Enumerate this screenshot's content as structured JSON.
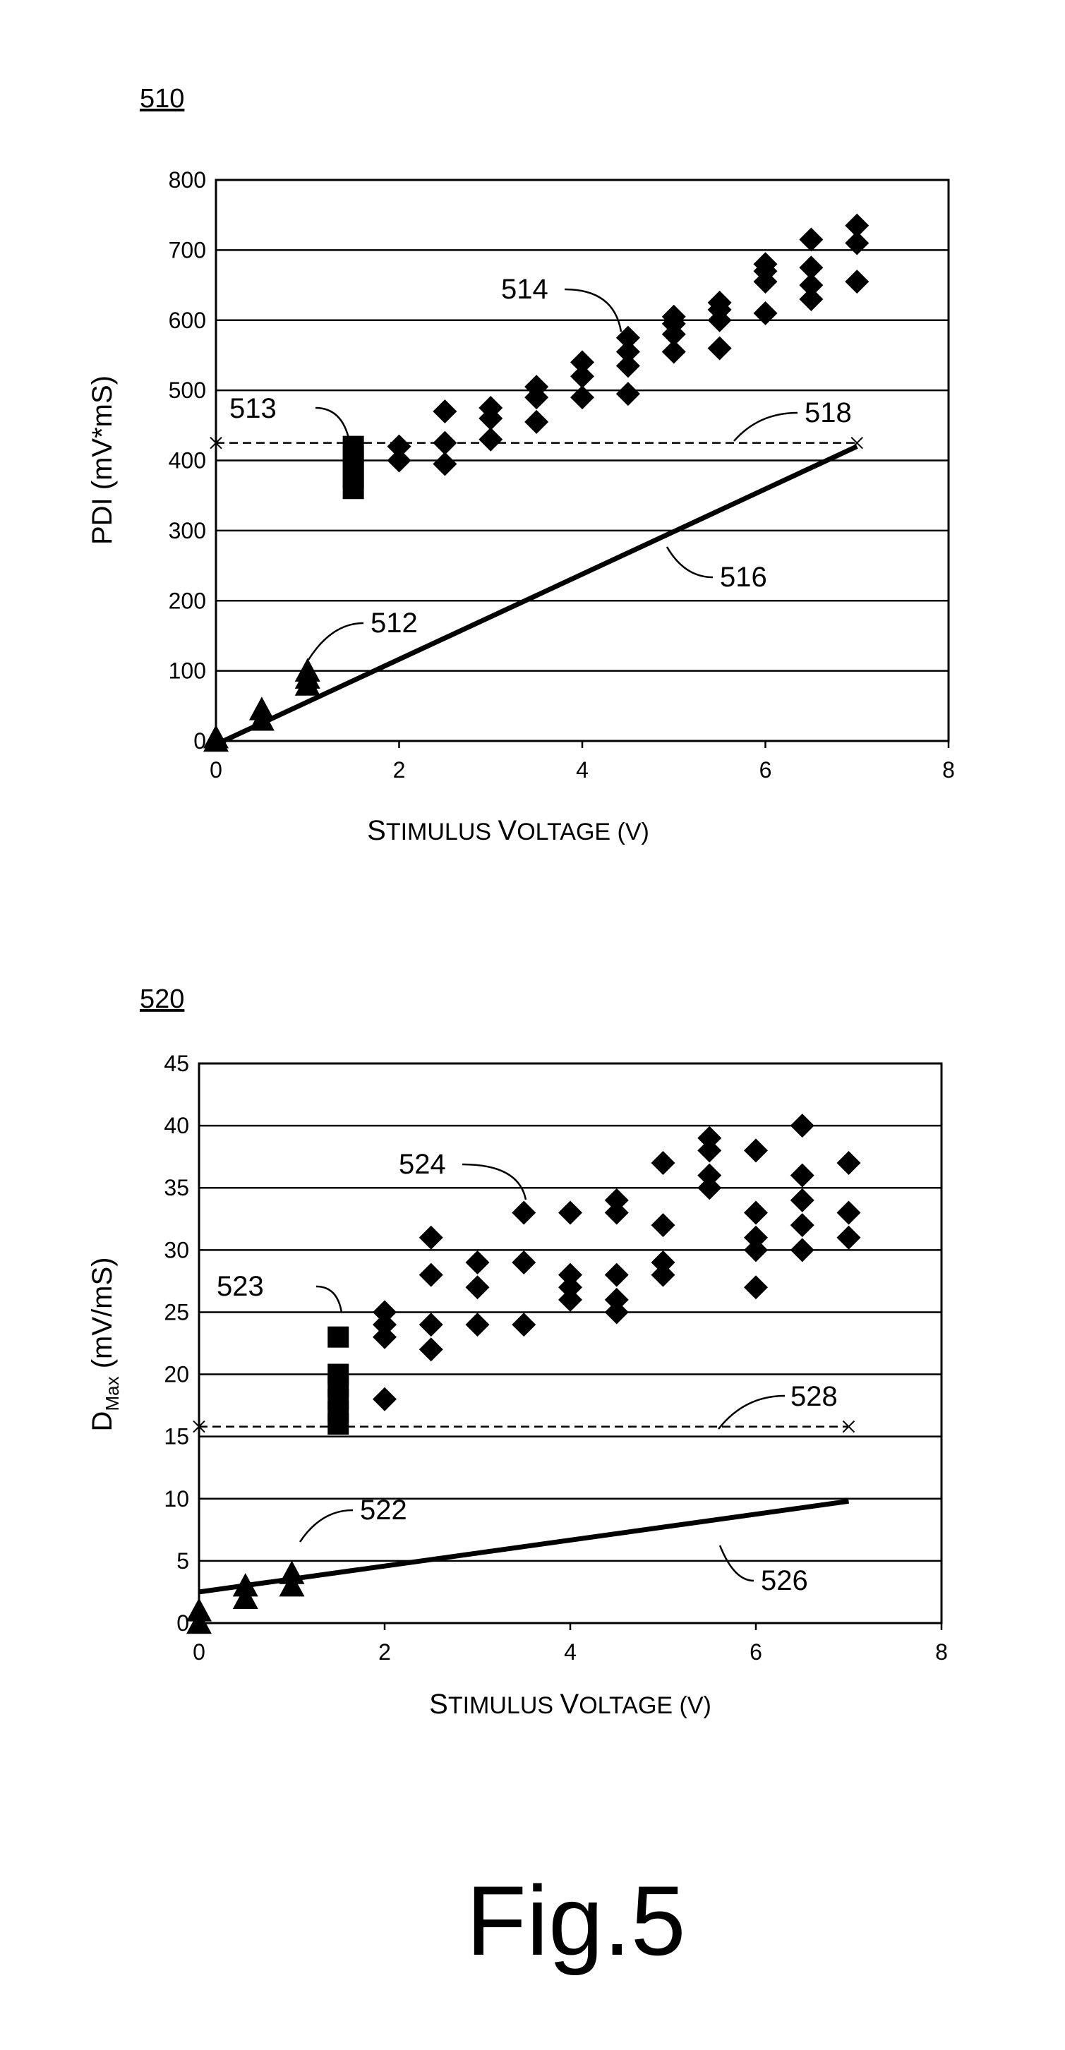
{
  "figure_label": "Fig.5",
  "chart_data": [
    {
      "id": "510",
      "type": "scatter",
      "title": "",
      "xlabel_parts": [
        "S",
        "TIMULUS ",
        "V",
        "OLTAGE (V)"
      ],
      "ylabel": "PDI (mV*mS)",
      "xlim": [
        0,
        8
      ],
      "ylim": [
        0,
        800
      ],
      "xticks": [
        "0",
        "2",
        "4",
        "6",
        "8"
      ],
      "yticks": [
        "0",
        "100",
        "200",
        "300",
        "400",
        "500",
        "600",
        "700",
        "800"
      ],
      "grid": "horizontal",
      "series": [
        {
          "name": "512",
          "marker": "triangle",
          "points": [
            [
              0,
              0
            ],
            [
              0,
              5
            ],
            [
              0.5,
              30
            ],
            [
              0.5,
              45
            ],
            [
              1,
              80
            ],
            [
              1,
              90
            ],
            [
              1,
              100
            ]
          ]
        },
        {
          "name": "513",
          "marker": "square",
          "points": [
            [
              1.5,
              360
            ],
            [
              1.5,
              375
            ],
            [
              1.5,
              390
            ],
            [
              1.5,
              405
            ],
            [
              1.5,
              420
            ]
          ]
        },
        {
          "name": "514",
          "marker": "diamond",
          "points": [
            [
              2,
              400
            ],
            [
              2,
              420
            ],
            [
              2.5,
              395
            ],
            [
              2.5,
              425
            ],
            [
              2.5,
              470
            ],
            [
              3,
              430
            ],
            [
              3,
              460
            ],
            [
              3,
              475
            ],
            [
              3.5,
              455
            ],
            [
              3.5,
              490
            ],
            [
              3.5,
              505
            ],
            [
              4,
              490
            ],
            [
              4,
              520
            ],
            [
              4,
              540
            ],
            [
              4.5,
              495
            ],
            [
              4.5,
              535
            ],
            [
              4.5,
              555
            ],
            [
              4.5,
              575
            ],
            [
              5,
              555
            ],
            [
              5,
              580
            ],
            [
              5,
              595
            ],
            [
              5,
              605
            ],
            [
              5.5,
              560
            ],
            [
              5.5,
              600
            ],
            [
              5.5,
              615
            ],
            [
              5.5,
              625
            ],
            [
              6,
              610
            ],
            [
              6,
              655
            ],
            [
              6,
              670
            ],
            [
              6,
              680
            ],
            [
              6.5,
              630
            ],
            [
              6.5,
              650
            ],
            [
              6.5,
              675
            ],
            [
              6.5,
              715
            ],
            [
              7,
              655
            ],
            [
              7,
              710
            ],
            [
              7,
              735
            ]
          ]
        }
      ],
      "lines": [
        {
          "name": "516",
          "style": "solid",
          "points": [
            [
              0,
              -5
            ],
            [
              7,
              420
            ]
          ]
        },
        {
          "name": "518",
          "style": "dashed",
          "points": [
            [
              0,
              425
            ],
            [
              7,
              425
            ]
          ]
        }
      ],
      "callouts": [
        {
          "label": "512",
          "data_x": 1,
          "data_y": 105
        },
        {
          "label": "513",
          "data_x": 1.5,
          "data_y": 420
        },
        {
          "label": "514",
          "data_x": 4.5,
          "data_y": 580
        },
        {
          "label": "516",
          "data_x": 5,
          "data_y": 290
        },
        {
          "label": "518",
          "data_x": 5.5,
          "data_y": 425
        }
      ]
    },
    {
      "id": "520",
      "type": "scatter",
      "title": "",
      "xlabel_parts": [
        "S",
        "TIMULUS ",
        "V",
        "OLTAGE (V)"
      ],
      "ylabel": "D",
      "ylabel_sub": "Max",
      "ylabel_rest": " (mV/mS)",
      "xlim": [
        0,
        8
      ],
      "ylim": [
        0,
        45
      ],
      "xticks": [
        "0",
        "2",
        "4",
        "6",
        "8"
      ],
      "yticks": [
        "0",
        "5",
        "10",
        "15",
        "20",
        "25",
        "30",
        "35",
        "40",
        "45"
      ],
      "grid": "horizontal",
      "series": [
        {
          "name": "522",
          "marker": "triangle",
          "points": [
            [
              0,
              0
            ],
            [
              0,
              1
            ],
            [
              0.5,
              2
            ],
            [
              0.5,
              3
            ],
            [
              1,
              3
            ],
            [
              1,
              4
            ]
          ]
        },
        {
          "name": "523",
          "marker": "square",
          "points": [
            [
              1.5,
              16
            ],
            [
              1.5,
              17
            ],
            [
              1.5,
              18
            ],
            [
              1.5,
              19
            ],
            [
              1.5,
              20
            ],
            [
              1.5,
              23
            ]
          ]
        },
        {
          "name": "524",
          "marker": "diamond",
          "points": [
            [
              2,
              18
            ],
            [
              2,
              23
            ],
            [
              2,
              24
            ],
            [
              2,
              25
            ],
            [
              2.5,
              22
            ],
            [
              2.5,
              24
            ],
            [
              2.5,
              28
            ],
            [
              2.5,
              31
            ],
            [
              3,
              24
            ],
            [
              3,
              27
            ],
            [
              3,
              29
            ],
            [
              3.5,
              24
            ],
            [
              3.5,
              29
            ],
            [
              3.5,
              33
            ],
            [
              4,
              26
            ],
            [
              4,
              27
            ],
            [
              4,
              28
            ],
            [
              4,
              33
            ],
            [
              4.5,
              25
            ],
            [
              4.5,
              26
            ],
            [
              4.5,
              28
            ],
            [
              4.5,
              33
            ],
            [
              4.5,
              34
            ],
            [
              5,
              28
            ],
            [
              5,
              29
            ],
            [
              5,
              32
            ],
            [
              5,
              37
            ],
            [
              5.5,
              35
            ],
            [
              5.5,
              36
            ],
            [
              5.5,
              38
            ],
            [
              5.5,
              39
            ],
            [
              6,
              27
            ],
            [
              6,
              30
            ],
            [
              6,
              31
            ],
            [
              6,
              33
            ],
            [
              6,
              38
            ],
            [
              6.5,
              30
            ],
            [
              6.5,
              32
            ],
            [
              6.5,
              34
            ],
            [
              6.5,
              36
            ],
            [
              6.5,
              40
            ],
            [
              7,
              31
            ],
            [
              7,
              33
            ],
            [
              7,
              37
            ]
          ]
        }
      ],
      "lines": [
        {
          "name": "526",
          "style": "solid",
          "points": [
            [
              0,
              2.5
            ],
            [
              7,
              9.8
            ]
          ]
        },
        {
          "name": "528",
          "style": "dashed",
          "points": [
            [
              0,
              15.8
            ],
            [
              7,
              15.8
            ]
          ]
        }
      ],
      "callouts": [
        {
          "label": "522",
          "data_x": 1,
          "data_y": 4.3
        },
        {
          "label": "523",
          "data_x": 1.5,
          "data_y": 23
        },
        {
          "label": "524",
          "data_x": 3.5,
          "data_y": 33
        },
        {
          "label": "526",
          "data_x": 5.5,
          "data_y": 8.2
        },
        {
          "label": "528",
          "data_x": 5.5,
          "data_y": 15.8
        }
      ]
    }
  ]
}
